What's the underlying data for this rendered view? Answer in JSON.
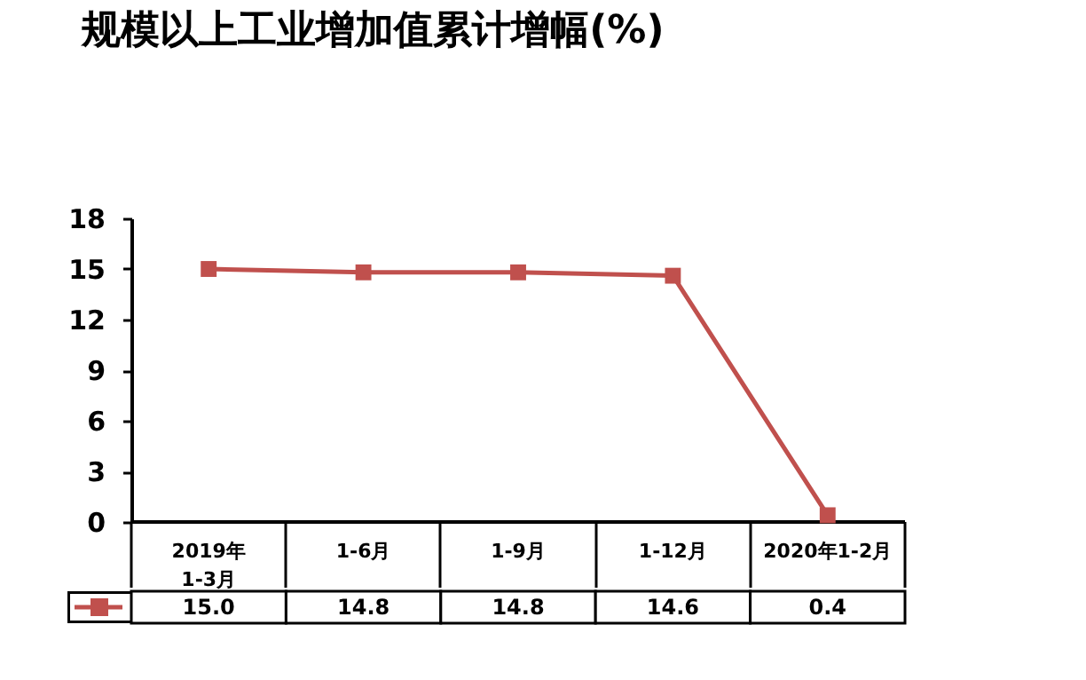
{
  "chart_data": {
    "type": "line",
    "title": "规模以上工业增加值累计增幅(%)",
    "categories": [
      "2019年\n1-3月",
      "1-6月",
      "1-9月",
      "1-12月",
      "2020年1-2月"
    ],
    "series": [
      {
        "color": "#c0504d",
        "values": [
          15.0,
          14.8,
          14.8,
          14.6,
          0.4
        ],
        "value_labels": [
          "15.0",
          "14.8",
          "14.8",
          "14.6",
          "0.4"
        ]
      }
    ],
    "ylim": [
      0,
      18
    ],
    "yticks": [
      0,
      3,
      6,
      9,
      12,
      15,
      18
    ],
    "grid": false,
    "marker": "square",
    "line_style": "solid"
  }
}
